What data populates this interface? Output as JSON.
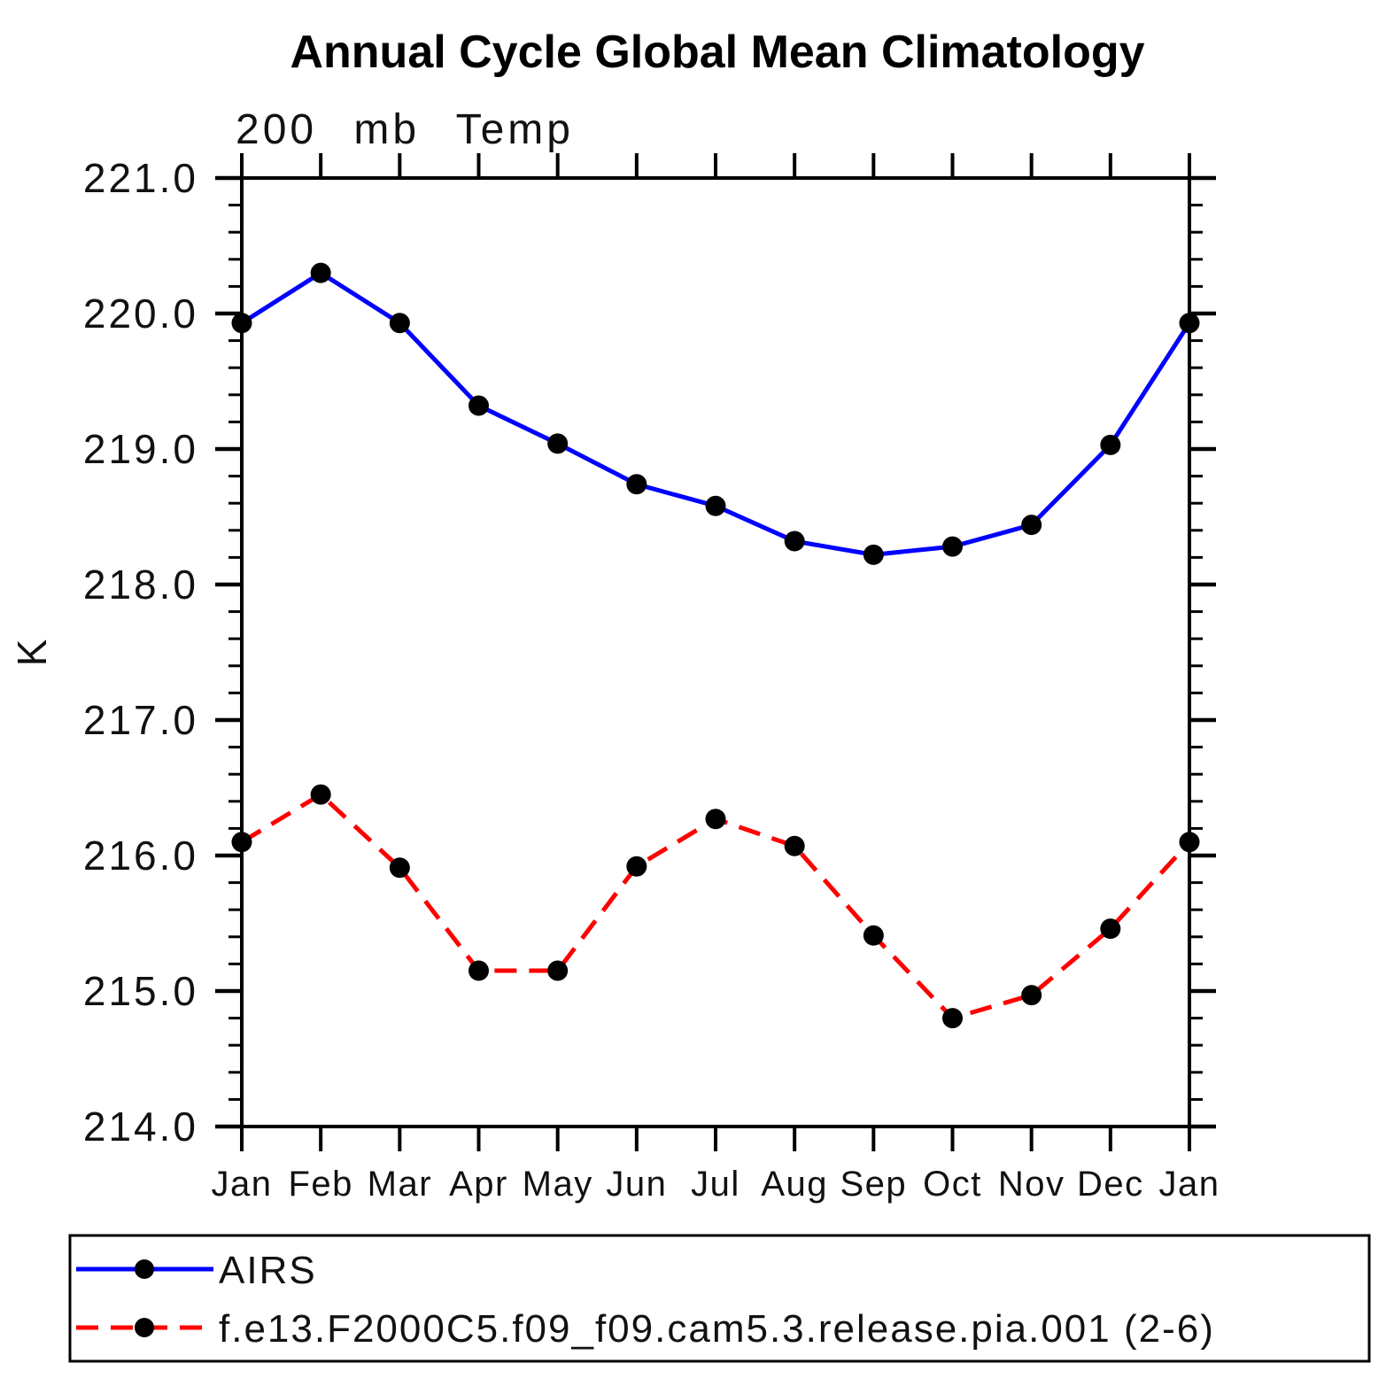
{
  "chart_data": {
    "type": "line",
    "title": "Annual Cycle Global Mean Climatology",
    "subtitle": "200 mb Temp",
    "ylabel": "K",
    "x_categories": [
      "Jan",
      "Feb",
      "Mar",
      "Apr",
      "May",
      "Jun",
      "Jul",
      "Aug",
      "Sep",
      "Oct",
      "Nov",
      "Dec",
      "Jan"
    ],
    "ylim": [
      214.0,
      221.0
    ],
    "y_axis": {
      "tick_labels": [
        "221.0",
        "220.0",
        "219.0",
        "218.0",
        "217.0",
        "216.0",
        "215.0",
        "214.0"
      ],
      "minor_step": 0.2
    },
    "grid": "off",
    "legend_position": "bottom-left-box",
    "axis_color": "#000000",
    "marker_color": "#000000",
    "series": [
      {
        "name": "AIRS",
        "color": "#0000ff",
        "line_style": "solid",
        "marker": "filled-circle",
        "values": [
          219.93,
          220.3,
          219.93,
          219.32,
          219.04,
          218.74,
          218.58,
          218.32,
          218.22,
          218.28,
          218.44,
          219.03,
          219.93
        ]
      },
      {
        "name": "f.e13.F2000C5.f09_f09.cam5.3.release.pia.001 (2-6)",
        "color": "#ff0000",
        "line_style": "dashed",
        "marker": "filled-circle",
        "values": [
          216.1,
          216.45,
          215.91,
          215.15,
          215.15,
          215.92,
          216.27,
          216.07,
          215.41,
          214.8,
          214.97,
          215.46,
          216.1
        ]
      }
    ]
  }
}
